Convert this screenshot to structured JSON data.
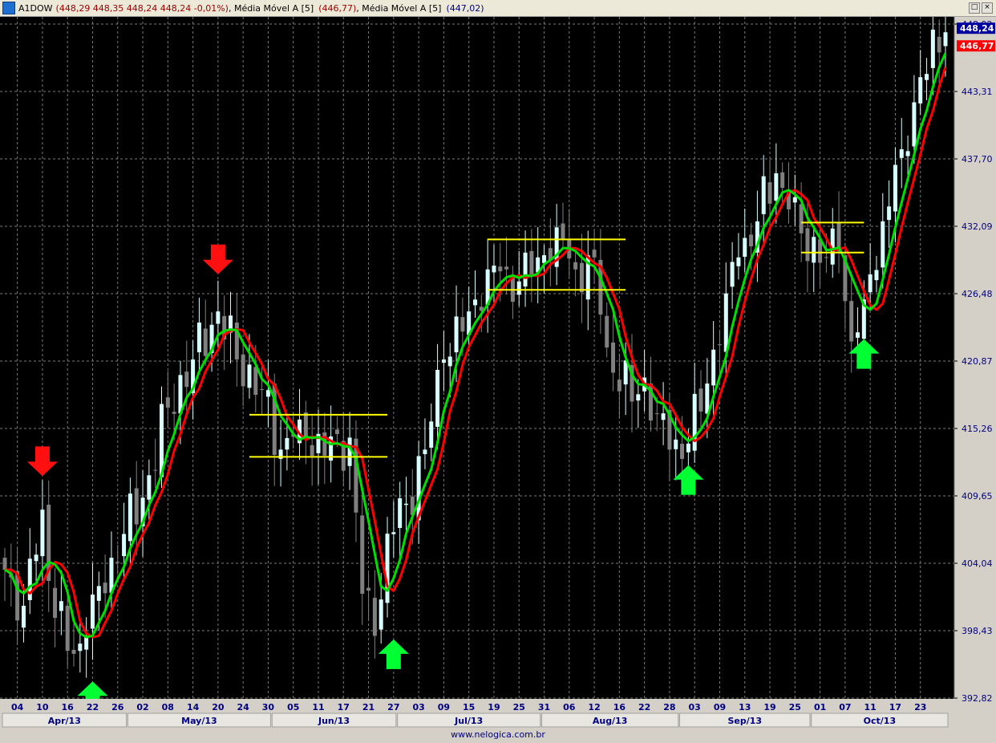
{
  "header": {
    "symbol": "A1DOW",
    "quote": "(448,29  448,35  448,24  448,24  -0,01%)",
    "ma1_label": "Média Móvel A [5]",
    "ma1_value": "(446,77)",
    "ma2_label": "Média Móvel A [5]",
    "ma2_value": "(447,02)",
    "buttons": [
      "□",
      "×"
    ]
  },
  "colors": {
    "background": "#000000",
    "grid": "#7a7a7a",
    "candle_up": "#d8ffff",
    "candle_down": "#808080",
    "ma_green": "#00e000",
    "ma_red": "#ff0000",
    "level_lines": "#ffff00",
    "arrow_up": "#00ff33",
    "arrow_down": "#ff1010",
    "axis_text": "#000080"
  },
  "footer": "www.nelogica.com.br",
  "chart_data": {
    "type": "line",
    "title": "",
    "ylim": [
      392.82,
      448.92
    ],
    "y_ticks": [
      "448,92",
      "443,31",
      "437,70",
      "432,09",
      "426,48",
      "420,87",
      "415,26",
      "409,65",
      "404,04",
      "398,43",
      "392,82"
    ],
    "last_price_tag": "448,24",
    "ma_tag": "446,77",
    "x_ticks": [
      {
        "label": "04",
        "i": 2
      },
      {
        "label": "10",
        "i": 6
      },
      {
        "label": "16",
        "i": 10
      },
      {
        "label": "22",
        "i": 14
      },
      {
        "label": "26",
        "i": 18
      },
      {
        "label": "02",
        "i": 22
      },
      {
        "label": "08",
        "i": 26
      },
      {
        "label": "14",
        "i": 30
      },
      {
        "label": "20",
        "i": 34
      },
      {
        "label": "24",
        "i": 38
      },
      {
        "label": "30",
        "i": 42
      },
      {
        "label": "05",
        "i": 46
      },
      {
        "label": "11",
        "i": 50
      },
      {
        "label": "17",
        "i": 54
      },
      {
        "label": "21",
        "i": 58
      },
      {
        "label": "27",
        "i": 62
      },
      {
        "label": "03",
        "i": 66
      },
      {
        "label": "09",
        "i": 70
      },
      {
        "label": "15",
        "i": 74
      },
      {
        "label": "19",
        "i": 78
      },
      {
        "label": "25",
        "i": 82
      },
      {
        "label": "31",
        "i": 86
      },
      {
        "label": "06",
        "i": 90
      },
      {
        "label": "12",
        "i": 94
      },
      {
        "label": "16",
        "i": 98
      },
      {
        "label": "22",
        "i": 102
      },
      {
        "label": "28",
        "i": 106
      },
      {
        "label": "03",
        "i": 110
      },
      {
        "label": "09",
        "i": 114
      },
      {
        "label": "13",
        "i": 118
      },
      {
        "label": "19",
        "i": 122
      },
      {
        "label": "25",
        "i": 126
      },
      {
        "label": "01",
        "i": 130
      },
      {
        "label": "07",
        "i": 134
      },
      {
        "label": "11",
        "i": 138
      },
      {
        "label": "17",
        "i": 142
      },
      {
        "label": "23",
        "i": 146
      }
    ],
    "months": [
      {
        "label": "Apr/13",
        "from": 0,
        "to": 19
      },
      {
        "label": "May/13",
        "from": 20,
        "to": 42
      },
      {
        "label": "Jun/13",
        "from": 43,
        "to": 62
      },
      {
        "label": "Jul/13",
        "from": 63,
        "to": 85
      },
      {
        "label": "Aug/13",
        "from": 86,
        "to": 107
      },
      {
        "label": "Sep/13",
        "from": 108,
        "to": 128
      },
      {
        "label": "Oct/13",
        "from": 129,
        "to": 150
      }
    ],
    "anchors": [
      [
        0,
        403.5
      ],
      [
        3,
        400.5
      ],
      [
        6,
        408.5
      ],
      [
        8,
        399.5
      ],
      [
        11,
        396.5
      ],
      [
        13,
        398.0
      ],
      [
        17,
        404.5
      ],
      [
        22,
        409.5
      ],
      [
        26,
        417.0
      ],
      [
        30,
        421.0
      ],
      [
        34,
        425.0
      ],
      [
        37,
        421.0
      ],
      [
        41,
        418.5
      ],
      [
        44,
        413.5
      ],
      [
        47,
        416.0
      ],
      [
        51,
        413.0
      ],
      [
        55,
        414.5
      ],
      [
        57,
        401.5
      ],
      [
        59,
        398.0
      ],
      [
        61,
        406.5
      ],
      [
        64,
        409.0
      ],
      [
        67,
        413.5
      ],
      [
        70,
        421.0
      ],
      [
        74,
        425.0
      ],
      [
        77,
        428.5
      ],
      [
        80,
        428.5
      ],
      [
        82,
        427.5
      ],
      [
        85,
        429.5
      ],
      [
        88,
        432.0
      ],
      [
        91,
        428.5
      ],
      [
        94,
        429.5
      ],
      [
        96,
        422.0
      ],
      [
        100,
        417.5
      ],
      [
        102,
        419.5
      ],
      [
        104,
        416.5
      ],
      [
        106,
        413.5
      ],
      [
        109,
        414.0
      ],
      [
        112,
        419.0
      ],
      [
        115,
        426.5
      ],
      [
        117,
        429.5
      ],
      [
        120,
        432.5
      ],
      [
        123,
        436.5
      ],
      [
        125,
        433.5
      ],
      [
        127,
        431.5
      ],
      [
        131,
        429.5
      ],
      [
        133,
        430.0
      ],
      [
        135,
        422.5
      ],
      [
        137,
        426.0
      ],
      [
        140,
        432.5
      ],
      [
        143,
        438.5
      ],
      [
        146,
        444.5
      ],
      [
        150,
        448.24
      ]
    ],
    "series": [
      {
        "name": "Média Móvel A [5] (446,77)",
        "period": 5,
        "color": "#ff0000",
        "lag": 1
      },
      {
        "name": "Média Móvel A [5] (447,02)",
        "period": 5,
        "color": "#00e000",
        "lag": 0
      }
    ],
    "level_lines": [
      {
        "y": 416.4,
        "from": 39,
        "to": 61
      },
      {
        "y": 412.9,
        "from": 39,
        "to": 61
      },
      {
        "y": 431.0,
        "from": 77,
        "to": 99
      },
      {
        "y": 426.8,
        "from": 77,
        "to": 99
      },
      {
        "y": 432.4,
        "from": 127,
        "to": 137
      },
      {
        "y": 429.9,
        "from": 127,
        "to": 137
      }
    ],
    "arrows": [
      {
        "dir": "down",
        "i": 6,
        "price": 412.5
      },
      {
        "dir": "up",
        "i": 14,
        "price": 393.0
      },
      {
        "dir": "down",
        "i": 34,
        "price": 429.3
      },
      {
        "dir": "up",
        "i": 62,
        "price": 396.5
      },
      {
        "dir": "up",
        "i": 109,
        "price": 411.0
      },
      {
        "dir": "up",
        "i": 137,
        "price": 421.5
      }
    ]
  }
}
